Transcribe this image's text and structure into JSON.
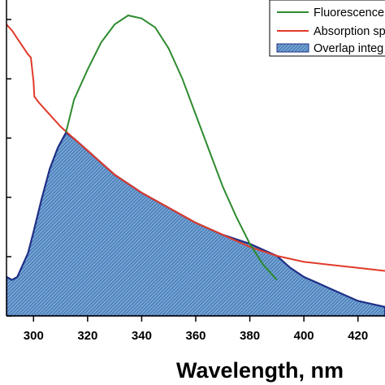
{
  "colors": {
    "fluorescence": "#2e8b2e",
    "absorption": "#e03a2a",
    "overlap_fill": "#4f86c0",
    "overlap_edge": "#1f2f86",
    "hatch": "#c9daf0",
    "axis": "#000000"
  },
  "chart_data": {
    "type": "area",
    "xlabel": "Wavelength, nm",
    "ylabel": "",
    "title": "",
    "xlim": [
      290,
      430
    ],
    "ylim": [
      0,
      1
    ],
    "x_ticks": [
      300,
      320,
      340,
      360,
      380,
      400,
      420
    ],
    "x_tick_labels": [
      "300",
      "320",
      "340",
      "360",
      "380",
      "400",
      "420"
    ],
    "y_ticks": [
      0,
      0.2,
      0.4,
      0.6,
      0.8,
      1.0
    ],
    "grid": false,
    "legend_position": "top-right",
    "legend": [
      {
        "label": "Fluorescence",
        "style": "line",
        "color_key": "fluorescence"
      },
      {
        "label": "Absorption sp",
        "style": "line",
        "color_key": "absorption"
      },
      {
        "label": "Overlap integ",
        "style": "fill",
        "color_key": "overlap_fill"
      }
    ],
    "series": [
      {
        "name": "Fluorescence",
        "x": [
          312,
          315,
          320,
          325,
          330,
          335,
          340,
          345,
          350,
          355,
          360,
          365,
          370,
          375,
          380,
          385,
          390
        ],
        "values": [
          0.61,
          0.72,
          0.82,
          0.91,
          0.97,
          1.0,
          0.99,
          0.96,
          0.89,
          0.79,
          0.67,
          0.55,
          0.43,
          0.33,
          0.24,
          0.17,
          0.12
        ]
      },
      {
        "name": "Absorption sp",
        "x": [
          290,
          292,
          295,
          298,
          299,
          300,
          300.3,
          302,
          305,
          310,
          315,
          320,
          330,
          340,
          350,
          360,
          370,
          380,
          390,
          400,
          410,
          420,
          430
        ],
        "values": [
          0.97,
          0.95,
          0.91,
          0.87,
          0.86,
          0.78,
          0.73,
          0.71,
          0.68,
          0.63,
          0.59,
          0.55,
          0.47,
          0.41,
          0.36,
          0.31,
          0.27,
          0.23,
          0.2,
          0.18,
          0.17,
          0.16,
          0.15
        ]
      },
      {
        "name": "Overlap integ",
        "x": [
          290,
          292,
          294,
          296,
          298,
          300,
          303,
          306,
          309,
          312,
          315,
          320,
          330,
          340,
          350,
          360,
          370,
          380,
          385,
          390,
          395,
          400,
          405,
          410,
          415,
          420,
          425,
          430
        ],
        "values": [
          0.13,
          0.12,
          0.13,
          0.17,
          0.21,
          0.28,
          0.39,
          0.49,
          0.56,
          0.61,
          0.59,
          0.55,
          0.47,
          0.41,
          0.36,
          0.31,
          0.27,
          0.24,
          0.22,
          0.2,
          0.16,
          0.13,
          0.11,
          0.09,
          0.07,
          0.05,
          0.04,
          0.03
        ]
      }
    ]
  }
}
